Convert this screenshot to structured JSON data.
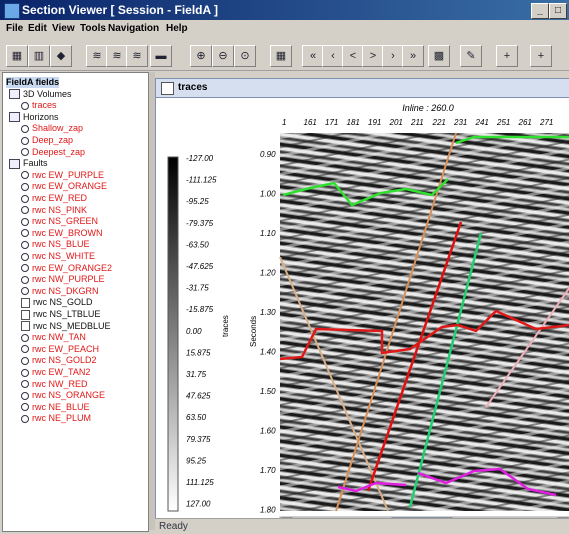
{
  "window": {
    "title": "Section Viewer [ Session - FieldA ]",
    "btn_min": "_",
    "btn_max": "□"
  },
  "menu": [
    "File",
    "Edit",
    "View",
    "Tools",
    "Navigation",
    "Help"
  ],
  "toolbar_icons": [
    "map-icon",
    "layers-icon",
    "marker-icon",
    "wiggle-icon",
    "wiggle-fill-icon",
    "variable-density-icon",
    "color-bar-icon",
    "zoom-in-icon",
    "zoom-out-icon",
    "zoom-fit-icon",
    "color-palette-icon",
    "first-icon",
    "prev-step-icon",
    "prev-icon",
    "next-icon",
    "next-step-icon",
    "last-icon",
    "grid-icon",
    "pick-icon",
    "plus-fault-icon",
    "plus-fault2-icon"
  ],
  "tree": {
    "root": "FieldA fields",
    "groups": [
      {
        "name": "3D Volumes",
        "items": [
          {
            "label": "traces",
            "color": "#e01818"
          }
        ]
      },
      {
        "name": "Horizons",
        "items": [
          {
            "label": "Shallow_zap",
            "color": "#e01818"
          },
          {
            "label": "Deep_zap",
            "color": "#e01818"
          },
          {
            "label": "Deepest_zap",
            "color": "#e01818"
          }
        ]
      },
      {
        "name": "Faults",
        "items": [
          {
            "label": "rwc EW_PURPLE",
            "color": "#e01818"
          },
          {
            "label": "rwc EW_ORANGE",
            "color": "#e01818"
          },
          {
            "label": "rwc EW_RED",
            "color": "#e01818"
          },
          {
            "label": "rwc NS_PINK",
            "color": "#e01818"
          },
          {
            "label": "rwc NS_GREEN",
            "color": "#e01818"
          },
          {
            "label": "rwc EW_BROWN",
            "color": "#e01818"
          },
          {
            "label": "rwc NS_BLUE",
            "color": "#e01818"
          },
          {
            "label": "rwc NS_WHITE",
            "color": "#e01818"
          },
          {
            "label": "rwc EW_ORANGE2",
            "color": "#e01818"
          },
          {
            "label": "rwc NW_PURPLE",
            "color": "#e01818"
          },
          {
            "label": "rwc NS_DKGRN",
            "color": "#e01818"
          },
          {
            "label": "rwc NS_GOLD",
            "color": "#111111"
          },
          {
            "label": "rwc NS_LTBLUE",
            "color": "#111111"
          },
          {
            "label": "rwc NS_MEDBLUE",
            "color": "#111111"
          },
          {
            "label": "rwc NW_TAN",
            "color": "#e01818"
          },
          {
            "label": "rwc EW_PEACH",
            "color": "#e01818"
          },
          {
            "label": "rwc NS_GOLD2",
            "color": "#e01818"
          },
          {
            "label": "rwc EW_TAN2",
            "color": "#e01818"
          },
          {
            "label": "rwc NW_RED",
            "color": "#e01818"
          },
          {
            "label": "rwc NS_ORANGE",
            "color": "#e01818"
          },
          {
            "label": "rwc NE_BLUE",
            "color": "#e01818"
          },
          {
            "label": "rwc NE_PLUM",
            "color": "#e01818"
          }
        ]
      }
    ]
  },
  "panel": {
    "title": "traces"
  },
  "section": {
    "inline_label": "Inline : 260.0",
    "trace_labels": [
      "1",
      "161",
      "171",
      "181",
      "191",
      "201",
      "211",
      "221",
      "231",
      "241",
      "251",
      "261",
      "271"
    ],
    "time_axis_label": "Seconds",
    "time_labels": [
      "0.90",
      "1.00",
      "1.10",
      "1.20",
      "1.30",
      "1.40",
      "1.50",
      "1.60",
      "1.70",
      "1.80"
    ],
    "colorbar_label": "traces",
    "colorbar_values": [
      "-127.00",
      "-111.125",
      "-95.25",
      "-79.375",
      "-63.50",
      "-47.625",
      "-31.75",
      "-15.875",
      "0.00",
      "15.875",
      "31.75",
      "47.625",
      "63.50",
      "79.375",
      "95.25",
      "111.125",
      "127.00"
    ]
  },
  "status": "Ready"
}
